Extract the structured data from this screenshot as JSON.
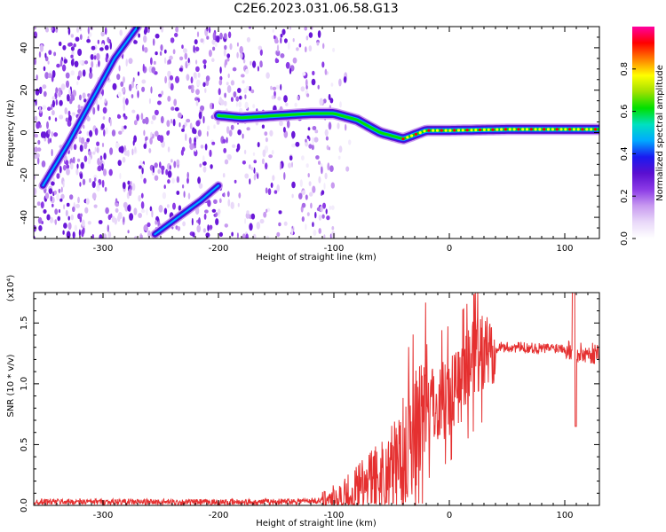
{
  "title": "C2E6.2023.031.06.58.G13",
  "colors": {
    "snr_line": "#e53030",
    "axis": "#000000",
    "colormap": [
      "#ffffff",
      "#e9d9f9",
      "#c89af0",
      "#8c3be6",
      "#5a0fd0",
      "#1a1af0",
      "#00aaff",
      "#00e0c0",
      "#00e000",
      "#a0e000",
      "#ffff00",
      "#ff8000",
      "#ff0000",
      "#ff00a0"
    ]
  },
  "chart_data": [
    {
      "type": "heatmap",
      "title": "",
      "xlabel": "Height of straight line (km)",
      "ylabel": "Frequency (Hz)",
      "xlim": [
        -360,
        130
      ],
      "ylim": [
        -50,
        50
      ],
      "x_ticks": [
        "-300",
        "-200",
        "-100",
        "0",
        "100"
      ],
      "y_ticks": [
        "-40",
        "-20",
        "0",
        "20",
        "40"
      ],
      "colorbar": {
        "label": "Normalized spectral amplitude",
        "range": [
          0,
          1
        ],
        "ticks": [
          "0.0",
          "0.2",
          "0.4",
          "0.6",
          "0.8"
        ]
      },
      "features": [
        {
          "name": "main frequency track",
          "x": [
            -200,
            -180,
            -150,
            -120,
            -100,
            -80,
            -60,
            -40,
            -20,
            0,
            50,
            100,
            130
          ],
          "y": [
            8,
            7,
            8,
            9,
            9,
            6,
            0,
            -3,
            1,
            1,
            1.5,
            1.5,
            1.5
          ]
        },
        {
          "name": "ascending streak",
          "x": [
            -352,
            -330,
            -310,
            -290,
            -270
          ],
          "y": [
            -25,
            -5,
            15,
            35,
            50
          ]
        },
        {
          "name": "lower ascending streak",
          "x": [
            -255,
            -235,
            -215,
            -200
          ],
          "y": [
            -48,
            -40,
            -32,
            -25
          ]
        }
      ]
    },
    {
      "type": "line",
      "title": "",
      "xlabel": "Height of straight line (km)",
      "ylabel": "SNR (10 * v/v)",
      "multiplier": "(x10⁴)",
      "xlim": [
        -360,
        130
      ],
      "ylim": [
        0,
        17500
      ],
      "x_ticks": [
        "-300",
        "-200",
        "-100",
        "0",
        "100"
      ],
      "y_ticks": [
        "0.0",
        "0.5",
        "1.0",
        "1.5"
      ],
      "series": [
        {
          "x": [
            -360,
            -300,
            -200,
            -150,
            -110,
            -90,
            -80,
            -70,
            -60,
            -50,
            -40,
            -30,
            -20,
            -10,
            0,
            10,
            20,
            30,
            40,
            60,
            80,
            100,
            105,
            108,
            110,
            130
          ],
          "y": [
            300,
            300,
            250,
            300,
            400,
            600,
            900,
            1500,
            2100,
            2800,
            4300,
            6100,
            7600,
            8600,
            9200,
            10300,
            11600,
            12600,
            13000,
            13000,
            12900,
            13000,
            12700,
            14000,
            12500,
            12500
          ]
        }
      ]
    }
  ]
}
